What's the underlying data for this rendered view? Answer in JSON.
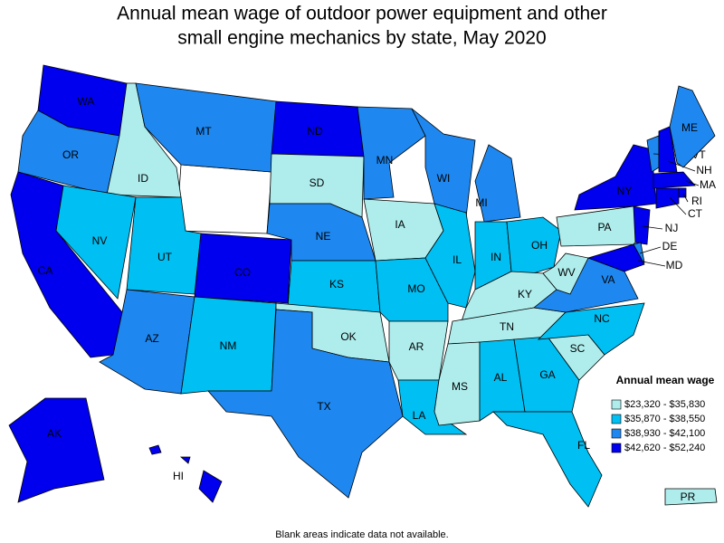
{
  "title_lines": [
    "Annual mean wage of outdoor power equipment and other",
    "small engine mechanics by state, May 2020"
  ],
  "legend": {
    "title": "Annual mean wage",
    "items": [
      {
        "label": "$23,320 - $35,830",
        "color": "#afeded"
      },
      {
        "label": "$35,870 - $38,550",
        "color": "#00bff2"
      },
      {
        "label": "$38,930 - $42,100",
        "color": "#1e88f0"
      },
      {
        "label": "$42,620 - $52,240",
        "color": "#0000ee"
      }
    ]
  },
  "states": [
    {
      "abbr": "WA",
      "bin": 3
    },
    {
      "abbr": "OR",
      "bin": 2
    },
    {
      "abbr": "CA",
      "bin": 3
    },
    {
      "abbr": "ID",
      "bin": 0
    },
    {
      "abbr": "NV",
      "bin": 1
    },
    {
      "abbr": "MT",
      "bin": 2
    },
    {
      "abbr": "UT",
      "bin": 1
    },
    {
      "abbr": "CO",
      "bin": 3
    },
    {
      "abbr": "AZ",
      "bin": 2
    },
    {
      "abbr": "NM",
      "bin": 1
    },
    {
      "abbr": "ND",
      "bin": 3
    },
    {
      "abbr": "SD",
      "bin": 0
    },
    {
      "abbr": "NE",
      "bin": 2
    },
    {
      "abbr": "KS",
      "bin": 1
    },
    {
      "abbr": "OK",
      "bin": 0
    },
    {
      "abbr": "TX",
      "bin": 2
    },
    {
      "abbr": "MN",
      "bin": 2
    },
    {
      "abbr": "IA",
      "bin": 0
    },
    {
      "abbr": "MO",
      "bin": 1
    },
    {
      "abbr": "AR",
      "bin": 0
    },
    {
      "abbr": "LA",
      "bin": 1
    },
    {
      "abbr": "WI",
      "bin": 2
    },
    {
      "abbr": "IL",
      "bin": 1
    },
    {
      "abbr": "MI",
      "bin": 2
    },
    {
      "abbr": "IN",
      "bin": 1
    },
    {
      "abbr": "OH",
      "bin": 1
    },
    {
      "abbr": "KY",
      "bin": 0
    },
    {
      "abbr": "TN",
      "bin": 0
    },
    {
      "abbr": "MS",
      "bin": 0
    },
    {
      "abbr": "AL",
      "bin": 1
    },
    {
      "abbr": "GA",
      "bin": 1
    },
    {
      "abbr": "FL",
      "bin": 1
    },
    {
      "abbr": "SC",
      "bin": 0
    },
    {
      "abbr": "NC",
      "bin": 1
    },
    {
      "abbr": "VA",
      "bin": 2
    },
    {
      "abbr": "WV",
      "bin": 0
    },
    {
      "abbr": "PA",
      "bin": 0
    },
    {
      "abbr": "NY",
      "bin": 3
    },
    {
      "abbr": "VT",
      "bin": 2
    },
    {
      "abbr": "NH",
      "bin": 3
    },
    {
      "abbr": "ME",
      "bin": 2
    },
    {
      "abbr": "MA",
      "bin": 3
    },
    {
      "abbr": "RI",
      "bin": 3
    },
    {
      "abbr": "CT",
      "bin": 3
    },
    {
      "abbr": "NJ",
      "bin": 3
    },
    {
      "abbr": "DE",
      "bin": 2
    },
    {
      "abbr": "MD",
      "bin": 3
    },
    {
      "abbr": "AK",
      "bin": 3
    },
    {
      "abbr": "HI",
      "bin": 3
    },
    {
      "abbr": "PR",
      "bin": 0
    }
  ],
  "footnote": "Blank areas indicate data not available."
}
